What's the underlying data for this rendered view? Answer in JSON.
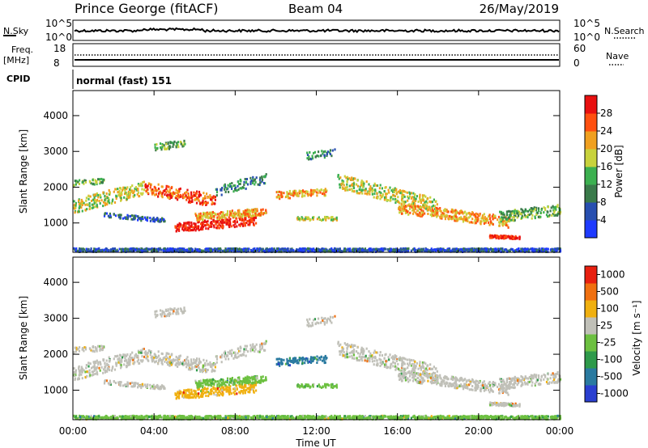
{
  "header": {
    "station": "Prince George (fitACF)",
    "beam": "Beam 04",
    "date": "26/May/2019"
  },
  "nsky_panel": {
    "left_label": "N.Sky",
    "right_label": "N.Search",
    "left_ticks": [
      "10^5",
      "10^0"
    ],
    "right_ticks": [
      "10^5",
      "10^0"
    ]
  },
  "freq_panel": {
    "left_label_1": "Freq.",
    "left_label_2": "[MHz]",
    "right_label": "Nave",
    "left_ticks": [
      "18",
      "8"
    ],
    "right_ticks": [
      "60",
      "0"
    ]
  },
  "cpid": {
    "label": "CPID",
    "value": "normal (fast) 151"
  },
  "chart_data": [
    {
      "type": "heatmap",
      "parameter": "Power",
      "ylabel": "Slant Range [km]",
      "yticks": [
        1000,
        2000,
        3000,
        4000
      ],
      "colorbar_label": "Power [dB]",
      "colorbar_ticks": [
        "4",
        "8",
        "12",
        "16",
        "20",
        "24",
        "28"
      ],
      "colorbar_colors": [
        "#1f3bff",
        "#284fb0",
        "#3a7a4a",
        "#3cb050",
        "#c8d23c",
        "#f0a020",
        "#ff5010",
        "#e81010"
      ]
    },
    {
      "type": "heatmap",
      "parameter": "Velocity",
      "ylabel": "Slant Range [km]",
      "yticks": [
        1000,
        2000,
        3000,
        4000
      ],
      "colorbar_label": "Velocity [m s⁻¹]",
      "colorbar_ticks": [
        "1000",
        "500",
        "100",
        "25",
        "-25",
        "-100",
        "-500",
        "-1000"
      ],
      "colorbar_colors": [
        "#2a3fd0",
        "#2a7aa0",
        "#2e9a4a",
        "#6cc040",
        "#c0c0b8",
        "#f0b010",
        "#f07010",
        "#e82010"
      ]
    }
  ],
  "x_axis": {
    "label": "Time UT",
    "ticks": [
      "00:00",
      "04:00",
      "08:00",
      "12:00",
      "16:00",
      "20:00",
      "00:00"
    ]
  }
}
